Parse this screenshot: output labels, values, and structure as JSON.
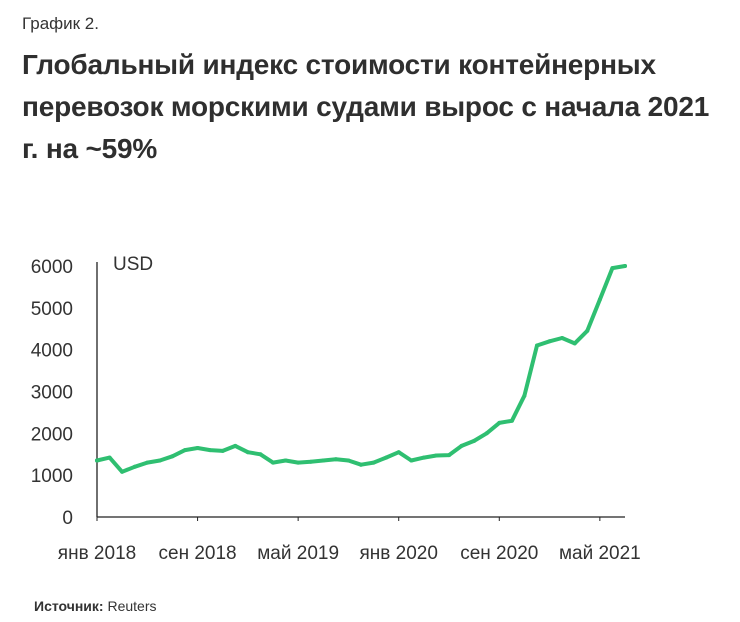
{
  "header": {
    "figure_label": "График 2.",
    "title": "Глобальный индекс стоимости контейнерных перевозок морскими судами вырос с начала 2021 г. на ~59%"
  },
  "source": {
    "label": "Источник:",
    "value": " Reuters"
  },
  "chart_data": {
    "type": "line",
    "title": "Глобальный индекс стоимости контейнерных перевозок морскими судами вырос с начала 2021 г. на ~59%",
    "ylabel": "USD",
    "xlabel": "",
    "ylim": [
      0,
      6000
    ],
    "yticks": [
      0,
      1000,
      2000,
      3000,
      4000,
      5000,
      6000
    ],
    "xticks": [
      {
        "label": "янв 2018",
        "date": "2018-01"
      },
      {
        "label": "сен 2018",
        "date": "2018-09"
      },
      {
        "label": "май 2019",
        "date": "2019-05"
      },
      {
        "label": "янв 2020",
        "date": "2020-01"
      },
      {
        "label": "сен 2020",
        "date": "2020-09"
      },
      {
        "label": "май 2021",
        "date": "2021-05"
      }
    ],
    "xlim": [
      "2018-01",
      "2021-07"
    ],
    "grid": false,
    "line_color": "#2fbf71",
    "series": [
      {
        "x": [
          "2018-01",
          "2018-02",
          "2018-03",
          "2018-04",
          "2018-05",
          "2018-06",
          "2018-07",
          "2018-08",
          "2018-09",
          "2018-10",
          "2018-11",
          "2018-12",
          "2019-01",
          "2019-02",
          "2019-03",
          "2019-04",
          "2019-05",
          "2019-06",
          "2019-07",
          "2019-08",
          "2019-09",
          "2019-10",
          "2019-11",
          "2019-12",
          "2020-01",
          "2020-02",
          "2020-03",
          "2020-04",
          "2020-05",
          "2020-06",
          "2020-07",
          "2020-08",
          "2020-09",
          "2020-10",
          "2020-11",
          "2020-12",
          "2021-01",
          "2021-02",
          "2021-03",
          "2021-04",
          "2021-05",
          "2021-06",
          "2021-07"
        ],
        "values": [
          1350,
          1420,
          1080,
          1200,
          1300,
          1350,
          1450,
          1600,
          1650,
          1600,
          1580,
          1700,
          1550,
          1500,
          1300,
          1350,
          1300,
          1320,
          1350,
          1380,
          1350,
          1250,
          1300,
          1420,
          1550,
          1350,
          1420,
          1470,
          1480,
          1700,
          1820,
          2000,
          2250,
          2300,
          2900,
          4100,
          4200,
          4280,
          4150,
          4450,
          5200,
          5950,
          6000
        ]
      }
    ]
  }
}
